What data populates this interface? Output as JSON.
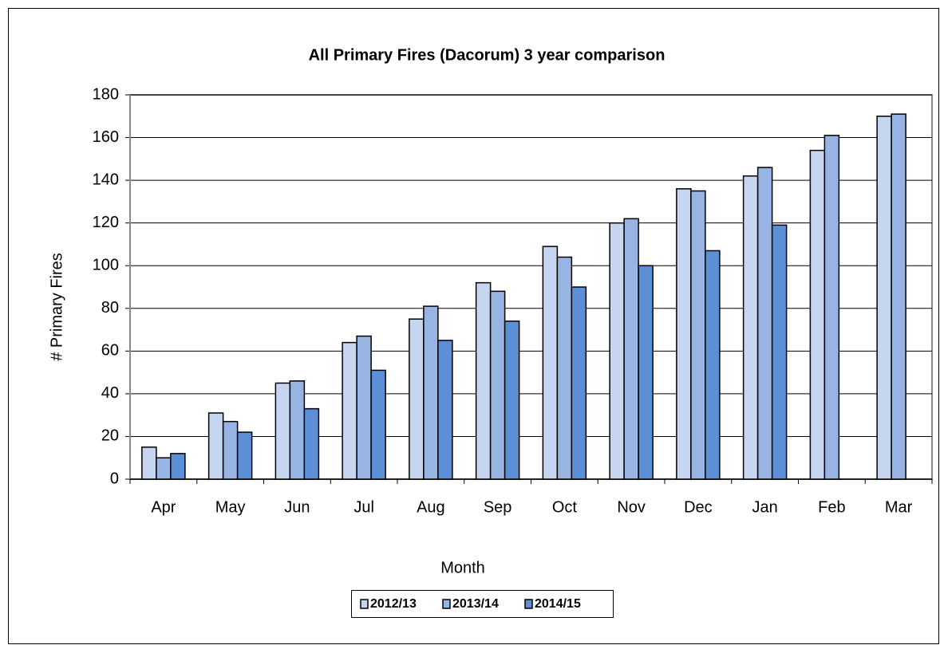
{
  "chart_data": {
    "type": "bar",
    "title": "All Primary Fires (Dacorum) 3 year comparison",
    "y_label": "# Primary Fires",
    "x_label": "Month",
    "categories": [
      "Apr",
      "May",
      "Jun",
      "Jul",
      "Aug",
      "Sep",
      "Oct",
      "Nov",
      "Dec",
      "Jan",
      "Feb",
      "Mar"
    ],
    "series": [
      {
        "name": "2012/13",
        "color": "#c6d6f0",
        "values": [
          15,
          31,
          45,
          64,
          75,
          92,
          109,
          120,
          136,
          142,
          154,
          170
        ]
      },
      {
        "name": "2013/14",
        "color": "#97b4e2",
        "values": [
          10,
          27,
          46,
          67,
          81,
          88,
          104,
          122,
          135,
          146,
          161,
          171
        ]
      },
      {
        "name": "2014/15",
        "color": "#5c8fd6",
        "values": [
          12,
          22,
          33,
          51,
          65,
          74,
          90,
          100,
          107,
          119,
          null,
          null
        ]
      }
    ],
    "ylim": [
      0,
      180
    ],
    "yticks": [
      0,
      20,
      40,
      60,
      80,
      100,
      120,
      140,
      160,
      180
    ],
    "grid": true,
    "legend": "bottom"
  }
}
